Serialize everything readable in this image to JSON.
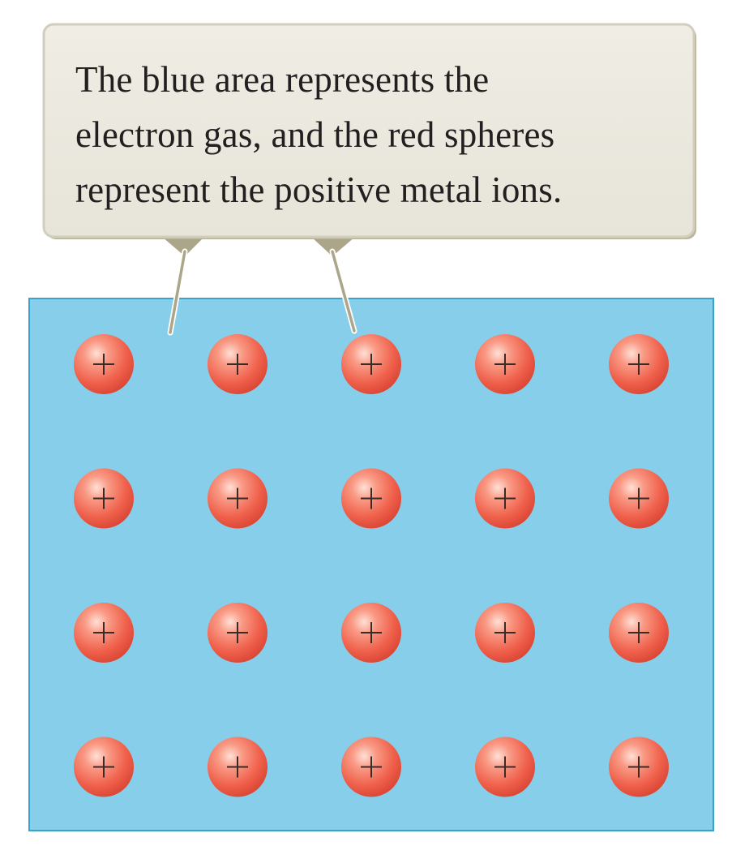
{
  "callout": {
    "lines": [
      "The blue area represents the",
      "electron gas, and the red spheres",
      "represent the positive metal ions."
    ]
  },
  "ion_grid": {
    "rows": 4,
    "columns": 5,
    "ion_symbol": "+"
  },
  "colors": {
    "electron_gas": "#87ceea",
    "electron_gas_border": "#3aa3c8",
    "ion_core": "#f16a55",
    "ion_highlight": "#ffd6cc",
    "callout_fill": "#ebe9df",
    "callout_border": "#c9c5b2",
    "pointer": "#aba68a"
  }
}
